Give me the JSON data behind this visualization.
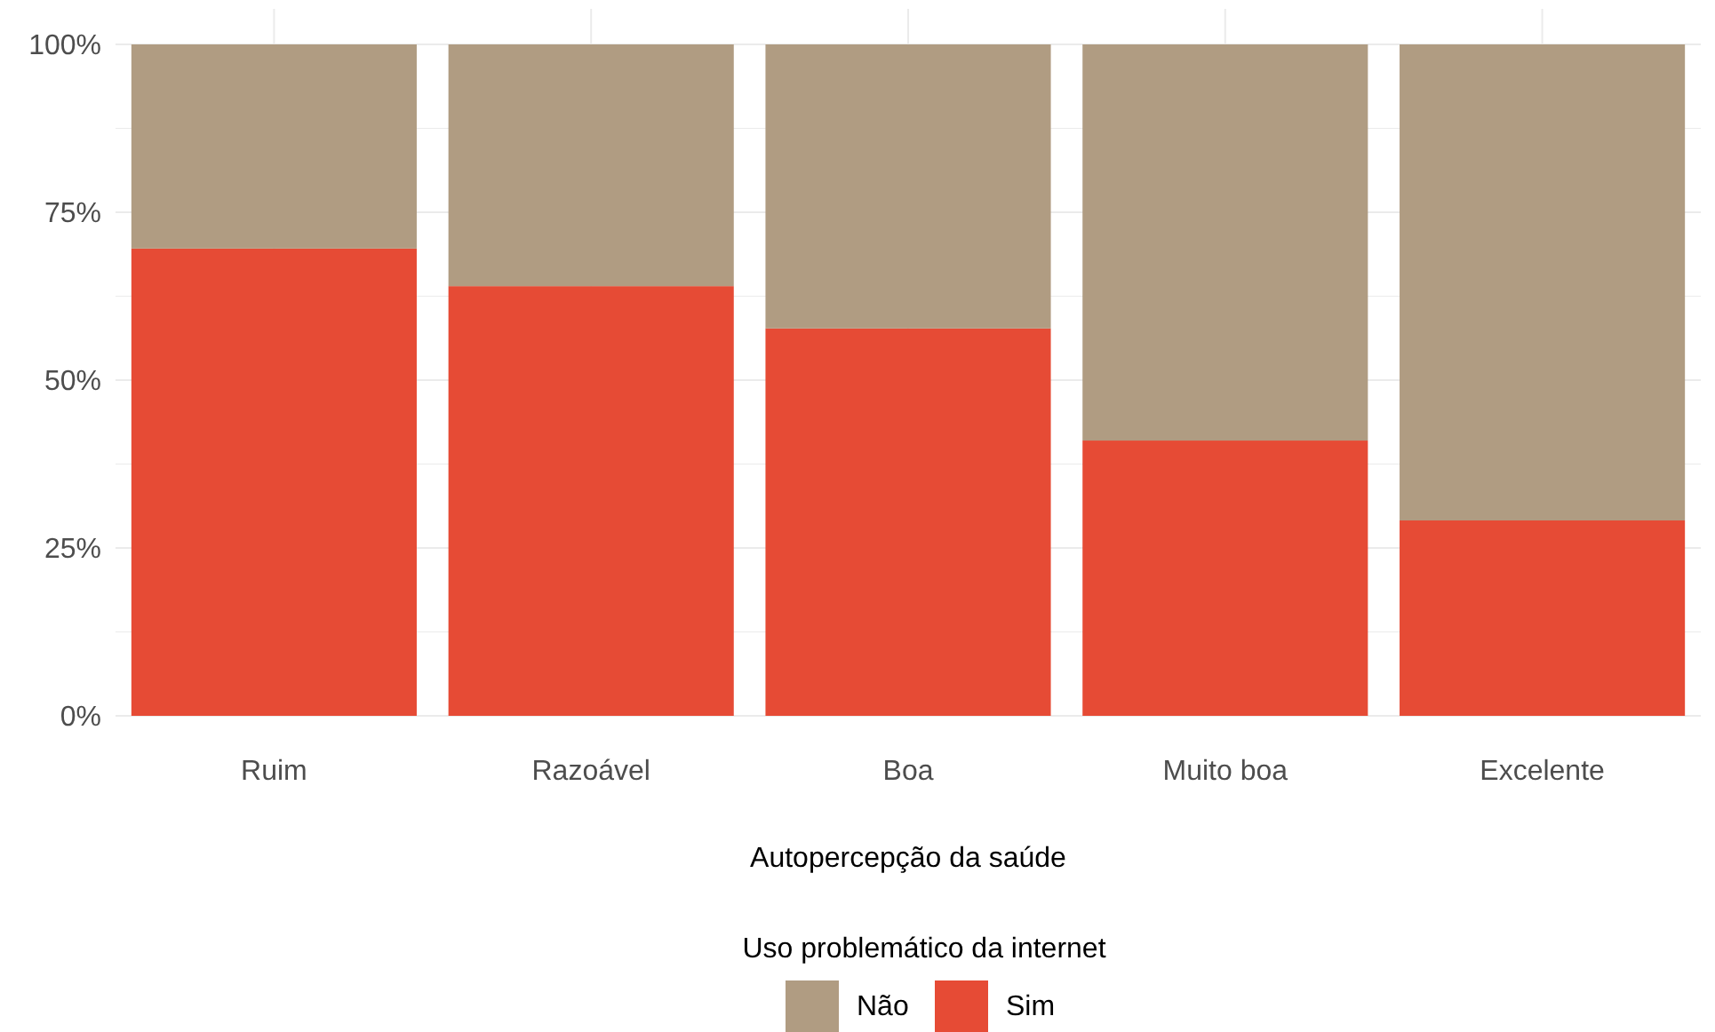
{
  "chart_data": {
    "type": "bar",
    "stacked": true,
    "xlabel": "Autopercepção da saúde",
    "legend_title": "Uso problemático da internet",
    "categories": [
      "Ruim",
      "Razoável",
      "Boa",
      "Muito boa",
      "Excelente"
    ],
    "series": [
      {
        "name": "Sim",
        "color": "#e64b35",
        "values": [
          69.6,
          64.0,
          57.7,
          41.0,
          29.1
        ]
      },
      {
        "name": "Não",
        "color": "#b09c82",
        "values": [
          30.4,
          36.0,
          42.3,
          59.0,
          70.9
        ]
      }
    ],
    "ylim": [
      0,
      100
    ],
    "yticks": [
      {
        "value": 0,
        "label": "0%"
      },
      {
        "value": 12.5,
        "label": null
      },
      {
        "value": 25,
        "label": "25%"
      },
      {
        "value": 37.5,
        "label": null
      },
      {
        "value": 50,
        "label": "50%"
      },
      {
        "value": 62.5,
        "label": null
      },
      {
        "value": 75,
        "label": "75%"
      },
      {
        "value": 87.5,
        "label": null
      },
      {
        "value": 100,
        "label": "100%"
      }
    ],
    "grid": true,
    "legend": "bottom"
  }
}
